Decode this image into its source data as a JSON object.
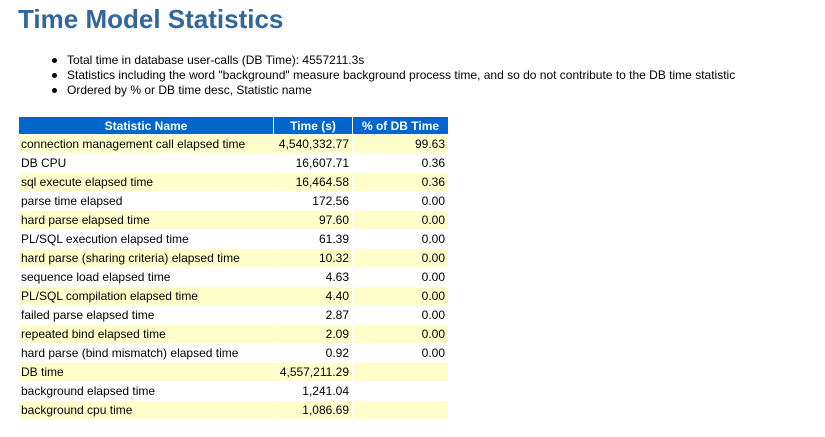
{
  "page": {
    "title": "Time Model Statistics"
  },
  "notes": [
    "Total time in database user-calls (DB Time): 4557211.3s",
    "Statistics including the word \"background\" measure background process time, and so do not contribute to the DB time statistic",
    "Ordered by % or DB time desc, Statistic name"
  ],
  "table": {
    "headers": {
      "name": "Statistic Name",
      "time": "Time (s)",
      "pct": "% of DB Time"
    },
    "rows": [
      {
        "name": "connection management call elapsed time",
        "time": "4,540,332.77",
        "pct": "99.63"
      },
      {
        "name": "DB CPU",
        "time": "16,607.71",
        "pct": "0.36"
      },
      {
        "name": "sql execute elapsed time",
        "time": "16,464.58",
        "pct": "0.36"
      },
      {
        "name": "parse time elapsed",
        "time": "172.56",
        "pct": "0.00"
      },
      {
        "name": "hard parse elapsed time",
        "time": "97.60",
        "pct": "0.00"
      },
      {
        "name": "PL/SQL execution elapsed time",
        "time": "61.39",
        "pct": "0.00"
      },
      {
        "name": "hard parse (sharing criteria) elapsed time",
        "time": "10.32",
        "pct": "0.00"
      },
      {
        "name": "sequence load elapsed time",
        "time": "4.63",
        "pct": "0.00"
      },
      {
        "name": "PL/SQL compilation elapsed time",
        "time": "4.40",
        "pct": "0.00"
      },
      {
        "name": "failed parse elapsed time",
        "time": "2.87",
        "pct": "0.00"
      },
      {
        "name": "repeated bind elapsed time",
        "time": "2.09",
        "pct": "0.00"
      },
      {
        "name": "hard parse (bind mismatch) elapsed time",
        "time": "0.92",
        "pct": "0.00"
      },
      {
        "name": "DB time",
        "time": "4,557,211.29",
        "pct": ""
      },
      {
        "name": "background elapsed time",
        "time": "1,241.04",
        "pct": ""
      },
      {
        "name": "background cpu time",
        "time": "1,086.69",
        "pct": ""
      }
    ]
  },
  "colors": {
    "title": "#336699",
    "header_bg": "#0066cc",
    "header_text": "#ffffff",
    "row_alt_bg": "#ffffcc"
  }
}
